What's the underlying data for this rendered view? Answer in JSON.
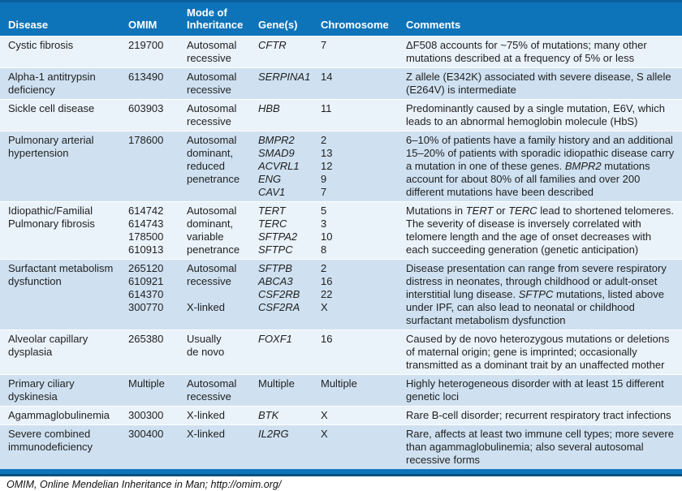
{
  "colors": {
    "header_bg": "#0e74ba",
    "header_text": "#ffffff",
    "row_light": "#eaf2fa",
    "row_dark": "#cfe1f1",
    "accent_bar": "#0e74ba",
    "bar_bottom_edge": "#094e80",
    "body_text": "#1f1f1f"
  },
  "table": {
    "columns": [
      "Disease",
      "OMIM",
      "Mode of Inheritance",
      "Gene(s)",
      "Chromosome",
      "Comments"
    ],
    "rows": [
      {
        "disease": "Cystic fibrosis",
        "omim": [
          "219700"
        ],
        "mode": [
          "Autosomal",
          "recessive"
        ],
        "genes": [
          "*CFTR*"
        ],
        "chromosome": [
          "7"
        ],
        "comment": "ΔF508 accounts for ~75% of mutations; many other mutations described at a frequency of 5% or less"
      },
      {
        "disease": "Alpha-1 antitrypsin deficiency",
        "omim": [
          "613490"
        ],
        "mode": [
          "Autosomal",
          "recessive"
        ],
        "genes": [
          "*SERPINA1*"
        ],
        "chromosome": [
          "14"
        ],
        "comment": "Z allele (E342K) associated with severe disease, S allele (E264V) is intermediate"
      },
      {
        "disease": "Sickle cell disease",
        "omim": [
          "603903"
        ],
        "mode": [
          "Autosomal",
          "recessive"
        ],
        "genes": [
          "*HBB*"
        ],
        "chromosome": [
          "11"
        ],
        "comment": "Predominantly caused by a single mutation, E6V, which leads to an abnormal hemoglobin molecule (HbS)"
      },
      {
        "disease": "Pulmonary arterial hypertension",
        "omim": [
          "178600"
        ],
        "mode": [
          "Autosomal",
          "dominant,",
          "reduced",
          "penetrance"
        ],
        "genes": [
          "*BMPR2*",
          "*SMAD9*",
          "*ACVRL1*",
          "*ENG*",
          "*CAV1*"
        ],
        "chromosome": [
          "2",
          "13",
          "12",
          "9",
          "7"
        ],
        "comment": "6–10% of patients have a family history and an additional 15–20% of patients with sporadic idiopathic disease carry a mutation in one of these genes. *BMPR2* mutations account for about 80% of all families and over 200 different mutations have been described"
      },
      {
        "disease": "Idiopathic/Familial Pulmonary fibrosis",
        "omim": [
          "614742",
          "614743",
          "178500",
          "610913"
        ],
        "mode": [
          "Autosomal",
          "dominant,",
          "variable",
          "penetrance"
        ],
        "genes": [
          "*TERT*",
          "*TERC*",
          "*SFTPA2*",
          "*SFTPC*"
        ],
        "chromosome": [
          "5",
          "3",
          "10",
          "8"
        ],
        "comment": "Mutations in *TERT* or *TERC* lead to shortened telomeres. The severity of disease is inversely correlated with telomere length and the age of onset decreases with each succeeding generation (genetic anticipation)"
      },
      {
        "disease": "Surfactant metabolism dysfunction",
        "omim": [
          "265120",
          "610921",
          "614370",
          "300770"
        ],
        "mode": [
          "Autosomal",
          "recessive",
          "",
          "X-linked"
        ],
        "genes": [
          "*SFTPB*",
          "*ABCA3*",
          "*CSF2RB*",
          "*CSF2RA*"
        ],
        "chromosome": [
          "2",
          "16",
          "22",
          "X"
        ],
        "comment": "Disease presentation can range from severe respiratory distress in neonates, through childhood or adult-onset interstitial lung disease. *SFTPC* mutations, listed above under IPF, can also lead to neonatal or childhood surfactant metabolism dysfunction"
      },
      {
        "disease": "Alveolar capillary dysplasia",
        "omim": [
          "265380"
        ],
        "mode": [
          "Usually",
          "de novo"
        ],
        "genes": [
          "*FOXF1*"
        ],
        "chromosome": [
          "16"
        ],
        "comment": "Caused by de novo heterozygous mutations or deletions of maternal origin; gene is imprinted; occasionally transmitted as a dominant trait by an unaffected mother"
      },
      {
        "disease": "Primary ciliary dyskinesia",
        "omim": [
          "Multiple"
        ],
        "mode": [
          "Autosomal",
          "recessive"
        ],
        "genes": [
          "Multiple"
        ],
        "chromosome": [
          "Multiple"
        ],
        "comment": "Highly heterogeneous disorder with at least 15 different genetic loci"
      },
      {
        "disease": "Agammaglobulinemia",
        "omim": [
          "300300"
        ],
        "mode": [
          "X-linked"
        ],
        "genes": [
          "*BTK*"
        ],
        "chromosome": [
          "X"
        ],
        "comment": "Rare B-cell disorder; recurrent respiratory tract infections"
      },
      {
        "disease": "Severe combined immunodeficiency",
        "omim": [
          "300400"
        ],
        "mode": [
          "X-linked"
        ],
        "genes": [
          "*IL2RG*"
        ],
        "chromosome": [
          "X"
        ],
        "comment": "Rare, affects at least two immune cell types; more severe than agammaglobulinemia; also several autosomal recessive forms"
      }
    ]
  },
  "footer": {
    "note": "OMIM, Online Mendelian Inheritance in Man; http://omim.org/"
  }
}
